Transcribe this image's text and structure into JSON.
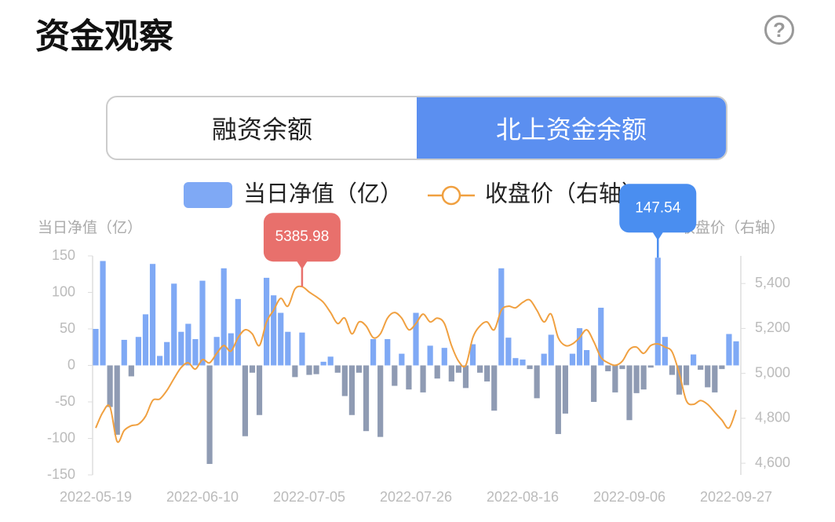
{
  "header": {
    "title": "资金观察",
    "help": "?"
  },
  "tabs": [
    {
      "label": "融资余额",
      "selected": false
    },
    {
      "label": "北上资金余额",
      "selected": true
    }
  ],
  "chart_data": {
    "type": "bar-line",
    "y_label": "当日净值（亿）",
    "y2_label": "收盘价（右轴）",
    "categories": [
      "2022-05-19",
      null,
      null,
      null,
      null,
      null,
      null,
      null,
      null,
      null,
      null,
      null,
      null,
      null,
      null,
      "2022-06-10",
      null,
      null,
      null,
      null,
      null,
      null,
      null,
      null,
      null,
      null,
      null,
      null,
      null,
      null,
      "2022-07-05",
      null,
      null,
      null,
      null,
      null,
      null,
      null,
      null,
      null,
      null,
      null,
      null,
      null,
      null,
      "2022-07-26",
      null,
      null,
      null,
      null,
      null,
      null,
      null,
      null,
      null,
      null,
      null,
      null,
      null,
      null,
      "2022-08-16",
      null,
      null,
      null,
      null,
      null,
      null,
      null,
      null,
      null,
      null,
      null,
      null,
      null,
      null,
      "2022-09-06",
      null,
      null,
      null,
      null,
      null,
      null,
      null,
      null,
      null,
      null,
      null,
      null,
      null,
      null,
      "2022-09-27"
    ],
    "series": [
      {
        "name": "当日净值（亿）",
        "type": "bar",
        "color": "#7fa9f5",
        "negative_color": "#8f9bb3",
        "values": [
          50,
          143,
          -57,
          -95,
          35,
          -15,
          39,
          70,
          139,
          13,
          32,
          112,
          46,
          57,
          36,
          116,
          -135,
          39,
          133,
          44,
          91,
          -97,
          -10,
          -68,
          120,
          96,
          72,
          46,
          -16,
          45,
          -13,
          -12,
          5,
          12,
          -10,
          -42,
          -68,
          -10,
          -90,
          36,
          -98,
          36,
          -28,
          16,
          -33,
          72,
          -37,
          27,
          -18,
          24,
          -22,
          -10,
          -31,
          29,
          -10,
          -22,
          -62,
          133,
          38,
          10,
          8,
          -5,
          -45,
          16,
          42,
          -94,
          -66,
          16,
          51,
          21,
          -50,
          79,
          -8,
          -37,
          -5,
          -75,
          -38,
          -33,
          -3,
          147.54,
          39,
          -13,
          -40,
          -27,
          15,
          -6,
          -30,
          -37,
          -5,
          43,
          33
        ]
      },
      {
        "name": "收盘价（右轴）",
        "type": "line",
        "axis": "y2",
        "color": "#f0a040",
        "values": [
          4757,
          4827,
          4851,
          4697,
          4746,
          4767,
          4774,
          4809,
          4879,
          4886,
          4924,
          4977,
          5026,
          5047,
          5019,
          5061,
          5047,
          5089,
          5124,
          5099,
          5159,
          5194,
          5176,
          5124,
          5229,
          5281,
          5334,
          5299,
          5376,
          5385.98,
          5362,
          5341,
          5316,
          5271,
          5222,
          5246,
          5176,
          5229,
          5211,
          5159,
          5176,
          5246,
          5271,
          5246,
          5194,
          5222,
          5264,
          5229,
          5246,
          5222,
          5124,
          5054,
          5036,
          5159,
          5211,
          5229,
          5194,
          5281,
          5299,
          5292,
          5316,
          5327,
          5281,
          5229,
          5264,
          5159,
          5124,
          5131,
          5159,
          5194,
          5141,
          5071,
          5047,
          5036,
          5054,
          5106,
          5117,
          5089,
          5124,
          5131,
          5117,
          5096,
          5001,
          4879,
          4862,
          4879,
          4862,
          4827,
          4792,
          4757,
          4837
        ]
      }
    ],
    "ylim": [
      -150,
      150
    ],
    "yticks": [
      -150,
      -100,
      -50,
      0,
      50,
      100,
      150
    ],
    "y2lim": [
      4548,
      5523
    ],
    "y2ticks": [
      {
        "value": 4600,
        "label": "4,600"
      },
      {
        "value": 4800,
        "label": "4,800"
      },
      {
        "value": 5000,
        "label": "5,000"
      },
      {
        "value": 5200,
        "label": "5,200"
      },
      {
        "value": 5400,
        "label": "5,400"
      }
    ],
    "highlights": [
      {
        "series": 1,
        "index": 29,
        "color": "#e8706c"
      },
      {
        "series": 0,
        "index": 79,
        "color": "#4a8ef0"
      }
    ]
  }
}
